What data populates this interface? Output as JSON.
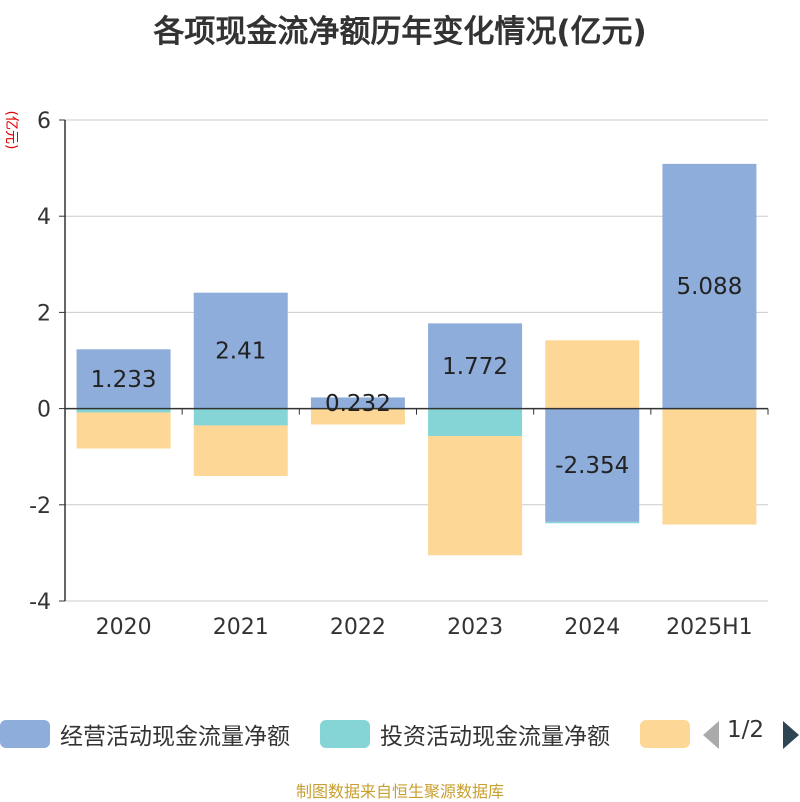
{
  "chart_data": {
    "type": "bar",
    "stacked": true,
    "title": "各项现金流净额历年变化情况(亿元)",
    "unit_label": "(亿元)",
    "categories": [
      "2020",
      "2021",
      "2022",
      "2023",
      "2024",
      "2025H1"
    ],
    "ylim": [
      -4,
      6
    ],
    "yticks": [
      -4,
      -2,
      0,
      2,
      4,
      6
    ],
    "grid": true,
    "series": [
      {
        "name": "经营活动现金流量净额",
        "color": "#8eadda",
        "values": [
          1.233,
          2.41,
          0.232,
          1.772,
          -2.354,
          5.088
        ],
        "labels": [
          "1.233",
          "2.41",
          "0.232",
          "1.772",
          "-2.354",
          "5.088"
        ]
      },
      {
        "name": "投资活动现金流量净额",
        "color": "#85d4d6",
        "values": [
          -0.08,
          -0.35,
          -0.01,
          -0.57,
          -0.03,
          -0.01
        ]
      },
      {
        "name": "",
        "color": "#fdd796",
        "values": [
          -0.75,
          -1.05,
          -0.32,
          -2.48,
          1.42,
          -2.4
        ]
      }
    ],
    "legend": {
      "placement": "bottom",
      "page": "1/2"
    }
  },
  "source_text": "制图数据来自恒生聚源数据库"
}
